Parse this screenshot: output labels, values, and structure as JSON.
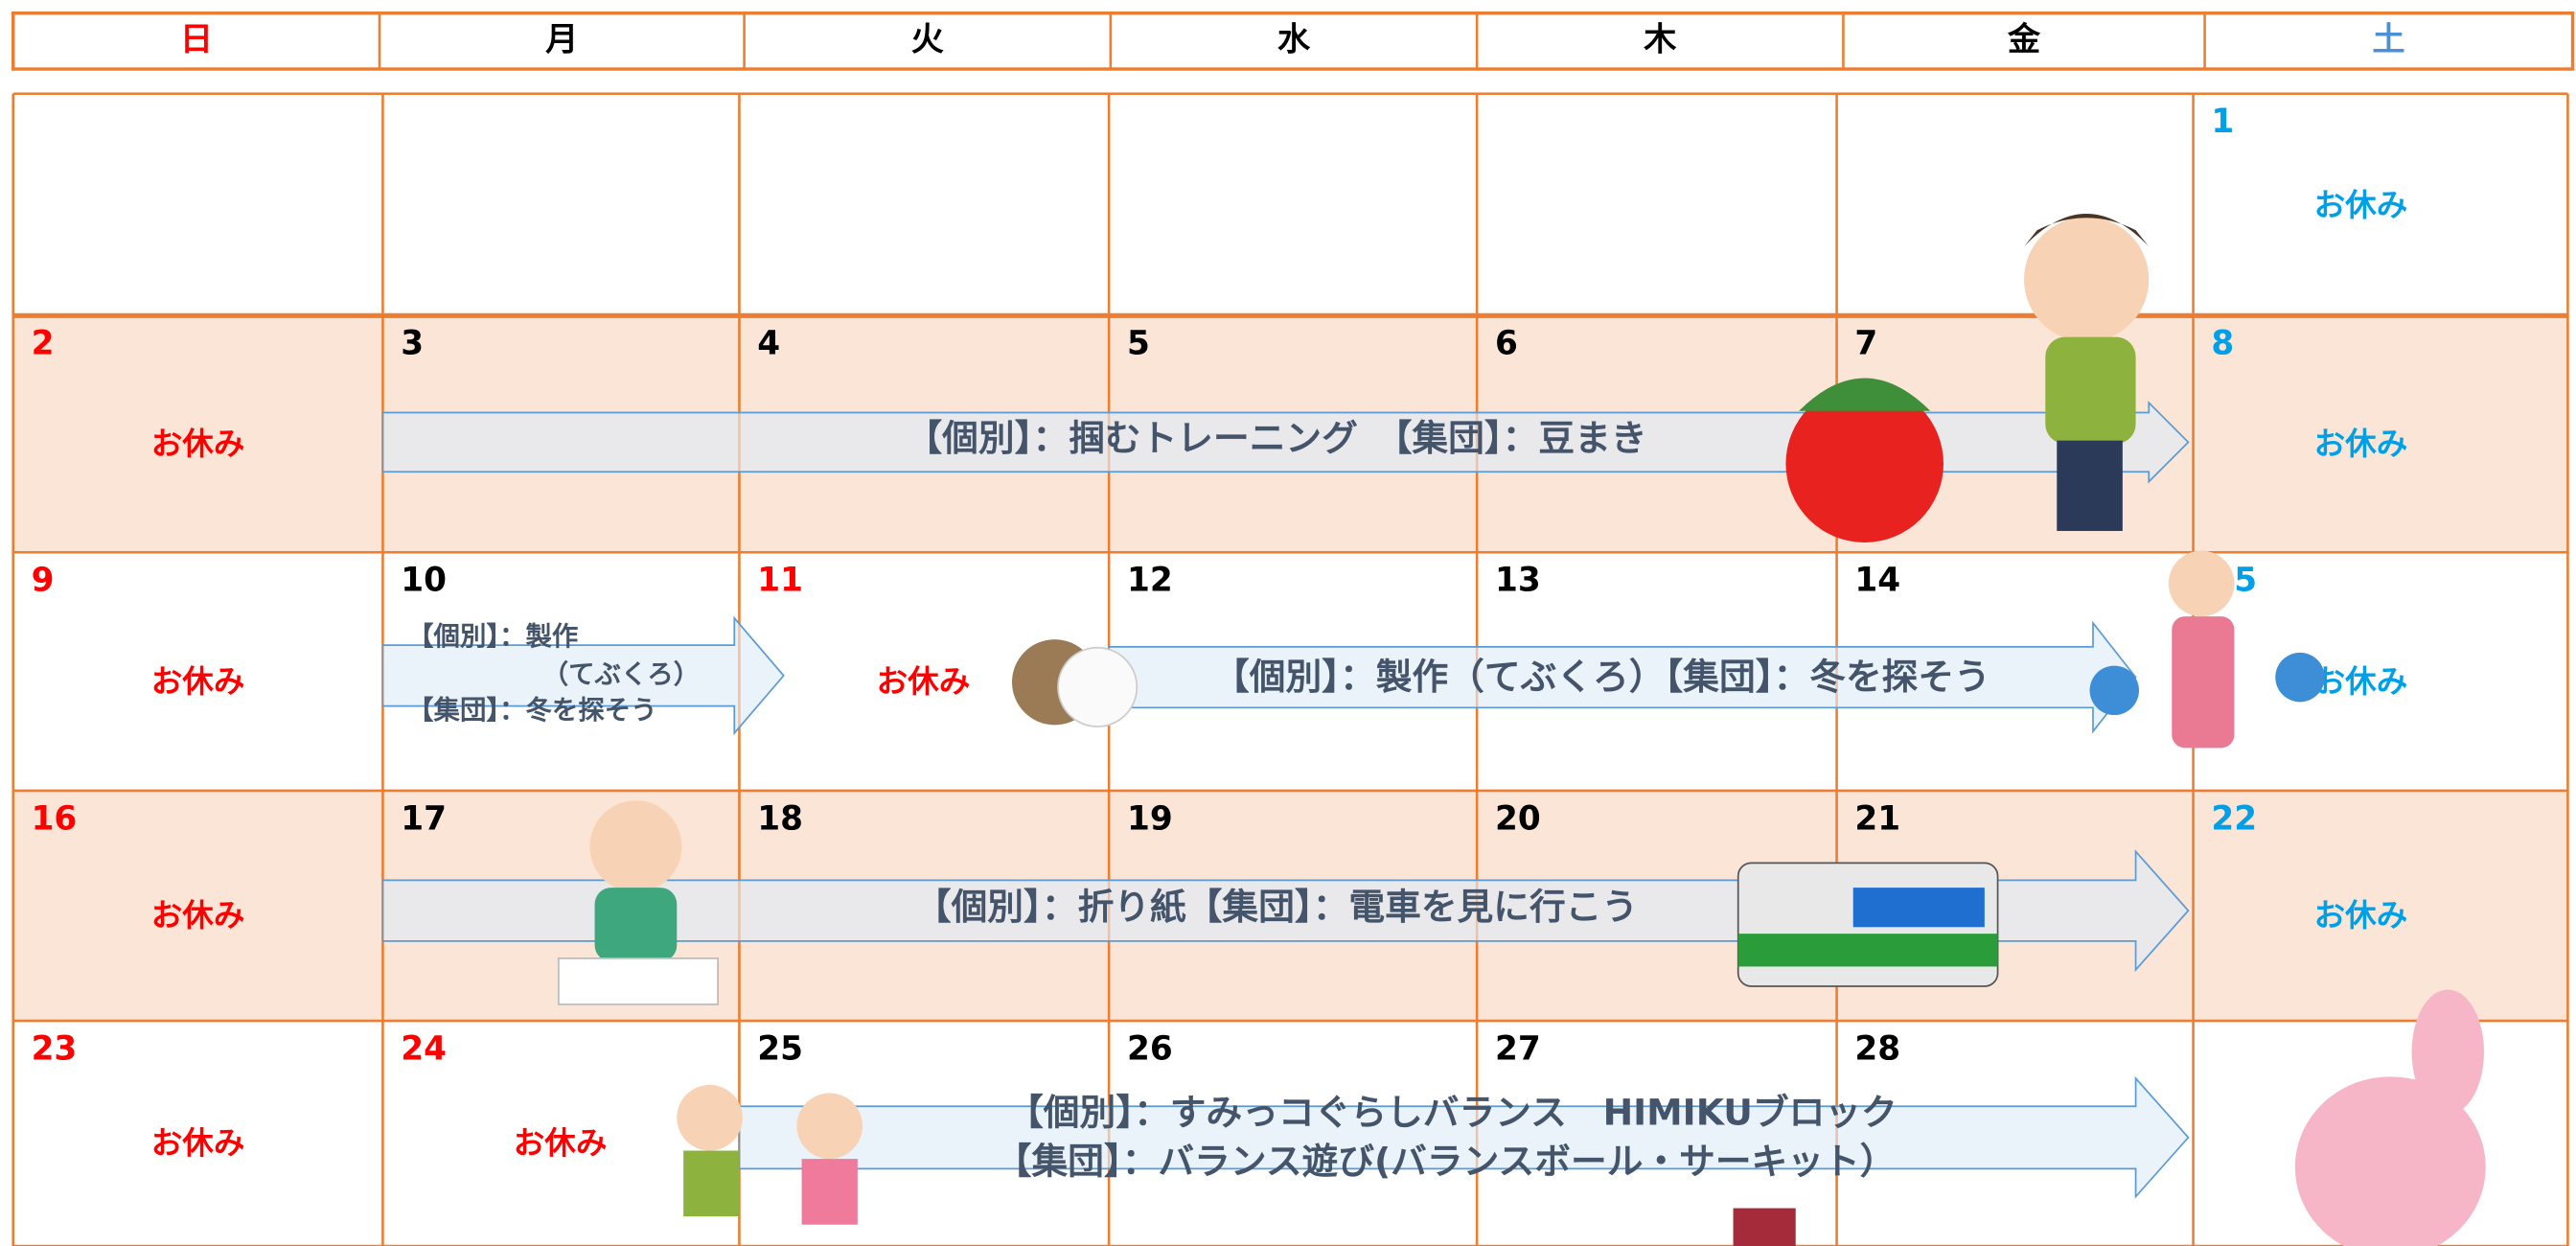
{
  "header": {
    "days": [
      "日",
      "月",
      "火",
      "水",
      "木",
      "金",
      "土"
    ]
  },
  "weeks": [
    {
      "cells": [
        null,
        null,
        null,
        null,
        null,
        null,
        {
          "day": "1",
          "note": "お休み"
        }
      ]
    },
    {
      "cells": [
        {
          "day": "2",
          "note": "お休み"
        },
        {
          "day": "3"
        },
        {
          "day": "4"
        },
        {
          "day": "5"
        },
        {
          "day": "6"
        },
        {
          "day": "7"
        },
        {
          "day": "8",
          "note": "お休み"
        }
      ],
      "events": [
        {
          "lines": [
            "【個別】：掴むトレーニング　【集団】：豆まき"
          ]
        }
      ]
    },
    {
      "cells": [
        {
          "day": "9",
          "note": "お休み"
        },
        {
          "day": "10"
        },
        {
          "day": "11",
          "note": "お休み"
        },
        {
          "day": "12"
        },
        {
          "day": "13"
        },
        {
          "day": "14"
        },
        {
          "day": "15",
          "note": "お休み"
        }
      ],
      "events": [
        {
          "lines": [
            "【個別】：製作",
            "（てぶくろ）",
            "【集団】：冬を探そう"
          ]
        },
        {
          "lines": [
            "【個別】：製作（てぶくろ）【集団】：冬を探そう"
          ]
        }
      ]
    },
    {
      "cells": [
        {
          "day": "16",
          "note": "お休み"
        },
        {
          "day": "17"
        },
        {
          "day": "18"
        },
        {
          "day": "19"
        },
        {
          "day": "20"
        },
        {
          "day": "21"
        },
        {
          "day": "22",
          "note": "お休み"
        }
      ],
      "events": [
        {
          "lines": [
            "【個別】：折り紙【集団】：電車を見に行こう"
          ]
        }
      ]
    },
    {
      "cells": [
        {
          "day": "23",
          "note": "お休み"
        },
        {
          "day": "24",
          "note": "お休み"
        },
        {
          "day": "25"
        },
        {
          "day": "26"
        },
        {
          "day": "27"
        },
        {
          "day": "28"
        },
        null
      ],
      "events": [
        {
          "lines": [
            "【個別】：すみっコぐらしバランス　HIMIKUブロック",
            "【集団】：バランス遊び(バランスボール・サーキット）"
          ]
        }
      ]
    }
  ]
}
